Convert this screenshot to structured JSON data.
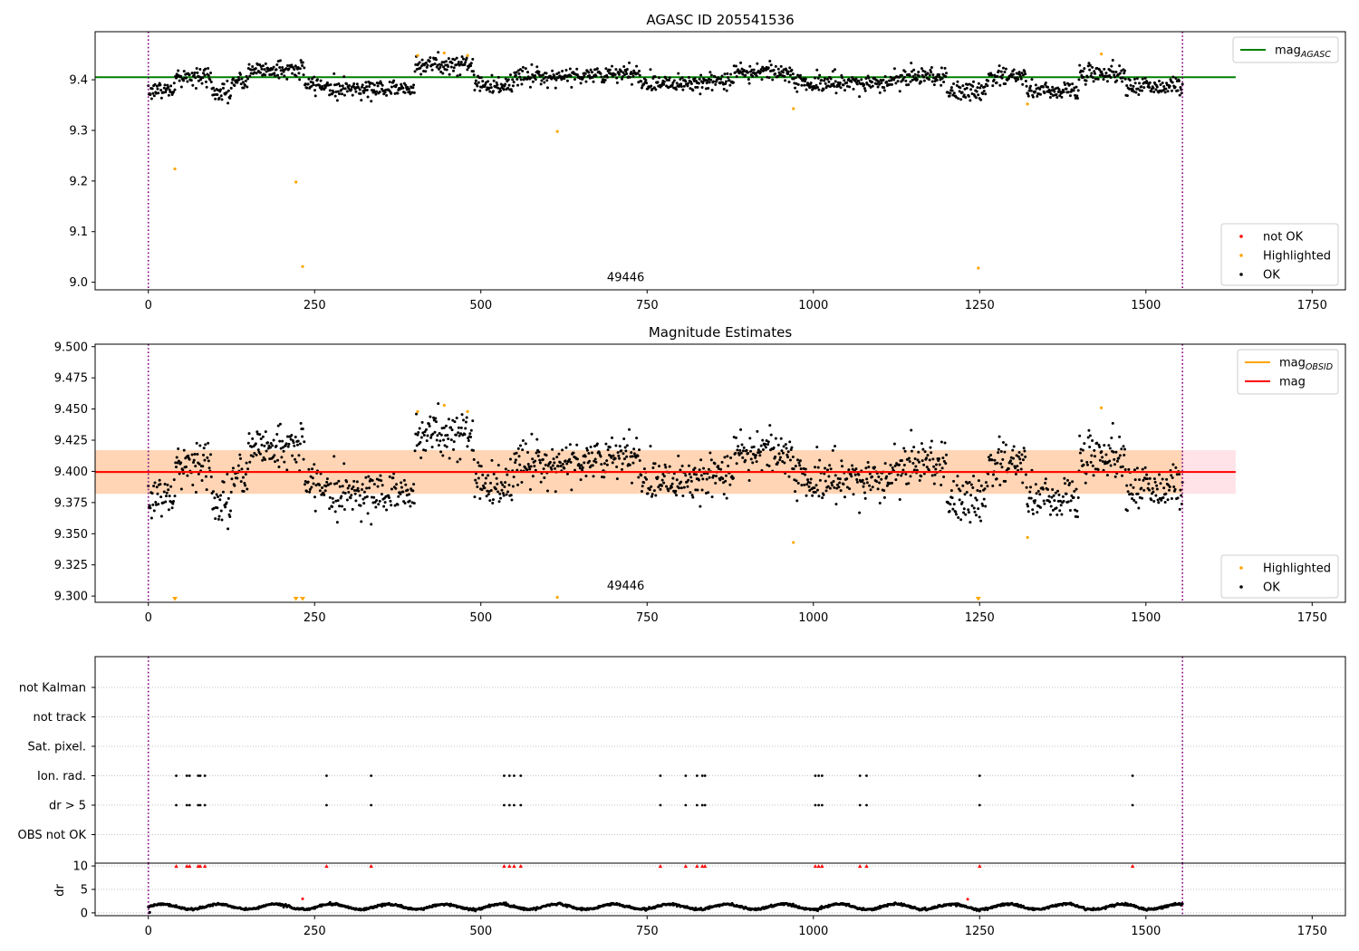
{
  "figure": {
    "panel1_title": "AGASC ID 205541536",
    "panel2_title": "Magnitude Estimates",
    "obsid_label": "49446"
  },
  "chart_data": [
    {
      "type": "scatter",
      "title": "AGASC ID 205541536",
      "xlim": [
        -80,
        1800
      ],
      "ylim": [
        8.985,
        9.495
      ],
      "xticks": [
        0,
        250,
        500,
        750,
        1000,
        1250,
        1500,
        1750
      ],
      "yticks": [
        9.0,
        9.1,
        9.2,
        9.3,
        9.4
      ],
      "grid": false,
      "legend_placement": [
        "top-right",
        "bottom-right"
      ],
      "vlines": [
        0,
        1555
      ],
      "annotation": {
        "text": "49446",
        "x": 775,
        "y": 9.0
      },
      "reference_lines": [
        {
          "name": "mag_AGASC",
          "value": 9.405,
          "x_range": [
            -80,
            1635
          ],
          "color": "#008000"
        }
      ],
      "legend_entries": [
        {
          "label": "mag",
          "sub": "AGASC",
          "color": "#008000",
          "kind": "line"
        },
        {
          "label": "not OK",
          "color": "#ff0000",
          "kind": "point"
        },
        {
          "label": "Highlighted",
          "color": "#ffa500",
          "kind": "point"
        },
        {
          "label": "OK",
          "color": "#000000",
          "kind": "point"
        }
      ],
      "series": [
        {
          "name": "OK",
          "color": "#000000",
          "x_range": [
            0,
            1555
          ],
          "n_points": 1560,
          "baseline": 9.395,
          "noise": 0.009,
          "segments": [
            {
              "x": [
                0,
                40
              ],
              "offset": -0.015
            },
            {
              "x": [
                40,
                95
              ],
              "offset": 0.01
            },
            {
              "x": [
                95,
                125
              ],
              "offset": -0.02
            },
            {
              "x": [
                125,
                150
              ],
              "offset": 0.0
            },
            {
              "x": [
                150,
                235
              ],
              "offset": 0.025
            },
            {
              "x": [
                235,
                270
              ],
              "offset": -0.005
            },
            {
              "x": [
                270,
                400
              ],
              "offset": -0.012
            },
            {
              "x": [
                400,
                490
              ],
              "offset": 0.035
            },
            {
              "x": [
                490,
                550
              ],
              "offset": -0.005
            },
            {
              "x": [
                550,
                640
              ],
              "offset": 0.012
            },
            {
              "x": [
                640,
                740
              ],
              "offset": 0.015
            },
            {
              "x": [
                740,
                880
              ],
              "offset": 0.0
            },
            {
              "x": [
                880,
                970
              ],
              "offset": 0.022
            },
            {
              "x": [
                970,
                1120
              ],
              "offset": -0.002
            },
            {
              "x": [
                1120,
                1200
              ],
              "offset": 0.012
            },
            {
              "x": [
                1200,
                1260
              ],
              "offset": -0.018
            },
            {
              "x": [
                1260,
                1320
              ],
              "offset": 0.01
            },
            {
              "x": [
                1320,
                1400
              ],
              "offset": -0.015
            },
            {
              "x": [
                1400,
                1470
              ],
              "offset": 0.018
            },
            {
              "x": [
                1470,
                1555
              ],
              "offset": -0.008
            }
          ]
        },
        {
          "name": "Highlighted",
          "color": "#ffa500",
          "x": [
            40,
            222,
            232,
            405,
            445,
            480,
            615,
            970,
            1248,
            1322,
            1433
          ],
          "y": [
            9.224,
            9.198,
            9.031,
            9.448,
            9.453,
            9.448,
            9.298,
            9.343,
            9.028,
            9.352,
            9.451
          ]
        },
        {
          "name": "not OK",
          "color": "#ff0000",
          "x": [],
          "y": []
        }
      ]
    },
    {
      "type": "scatter",
      "title": "Magnitude Estimates",
      "xlim": [
        -80,
        1800
      ],
      "ylim": [
        9.295,
        9.502
      ],
      "xticks": [
        0,
        250,
        500,
        750,
        1000,
        1250,
        1500,
        1750
      ],
      "yticks": [
        9.3,
        9.325,
        9.35,
        9.375,
        9.4,
        9.425,
        9.45,
        9.475,
        9.5
      ],
      "grid": false,
      "legend_placement": [
        "top-right",
        "bottom-right"
      ],
      "vlines": [
        0,
        1555
      ],
      "annotation": {
        "text": "49446",
        "x": 775,
        "y": 9.3
      },
      "reference_lines": [
        {
          "name": "mag_OBSID",
          "value": 9.3995,
          "x_range": [
            -80,
            1555
          ],
          "color": "#ffa500"
        },
        {
          "name": "mag",
          "value": 9.3995,
          "x_range": [
            -80,
            1635
          ],
          "color": "#ff0000"
        }
      ],
      "bands": [
        {
          "name": "mag range",
          "y": [
            9.382,
            9.417
          ],
          "x_range": [
            -80,
            1635
          ],
          "color": "#ffc0cb"
        },
        {
          "name": "mag_OBSID range",
          "y": [
            9.382,
            9.417
          ],
          "x_range": [
            -80,
            1555
          ],
          "color": "#ffa500"
        }
      ],
      "legend_entries": [
        {
          "label": "mag",
          "sub": "OBSID",
          "color": "#ffa500",
          "kind": "line"
        },
        {
          "label": "mag",
          "color": "#ff0000",
          "kind": "line"
        },
        {
          "label": "Highlighted",
          "color": "#ffa500",
          "kind": "point"
        },
        {
          "label": "OK",
          "color": "#000000",
          "kind": "point"
        }
      ],
      "series": [
        {
          "name": "OK",
          "color": "#000000",
          "same_as_panel": 0
        },
        {
          "name": "Highlighted",
          "color": "#ffa500",
          "x": [
            40,
            222,
            232,
            405,
            445,
            480,
            615,
            970,
            1248,
            1322,
            1433
          ],
          "y": [
            9.297,
            9.297,
            9.297,
            9.448,
            9.453,
            9.448,
            9.299,
            9.343,
            9.297,
            9.347,
            9.451
          ],
          "clipped_below": [
            40,
            222,
            232,
            1248
          ]
        }
      ]
    },
    {
      "type": "scatter",
      "title": "",
      "xlim": [
        -80,
        1800
      ],
      "xticks": [
        0,
        250,
        500,
        750,
        1000,
        1250,
        1500,
        1750
      ],
      "vlines": [
        0,
        1555
      ],
      "flag_rows": [
        "not Kalman",
        "not track",
        "Sat. pixel.",
        "Ion. rad.",
        "dr > 5",
        "OBS not OK"
      ],
      "flags": {
        "Ion. rad.": [
          42,
          58,
          62,
          75,
          78,
          85,
          268,
          335,
          535,
          543,
          550,
          560,
          770,
          808,
          825,
          833,
          837,
          1003,
          1008,
          1013,
          1070,
          1080,
          1250,
          1480
        ],
        "dr > 5": [
          42,
          58,
          62,
          75,
          78,
          85,
          268,
          335,
          535,
          543,
          550,
          560,
          770,
          808,
          825,
          833,
          837,
          1003,
          1008,
          1013,
          1070,
          1080,
          1250,
          1480
        ]
      },
      "dr": {
        "ylabel": "dr",
        "yticks": [
          0,
          5,
          10
        ],
        "ylim": [
          -0.6,
          10.6
        ],
        "clip_value": 10,
        "clipped_x": [
          42,
          58,
          62,
          75,
          78,
          85,
          268,
          335,
          535,
          543,
          550,
          560,
          770,
          808,
          825,
          833,
          837,
          1003,
          1008,
          1013,
          1070,
          1080,
          1250,
          1480
        ],
        "outliers": [
          {
            "x": 232,
            "y": 3.0
          },
          {
            "x": 1232,
            "y": 2.9
          }
        ],
        "baseline": 1.3,
        "amplitude": 0.55,
        "n_points": 1560
      }
    }
  ]
}
